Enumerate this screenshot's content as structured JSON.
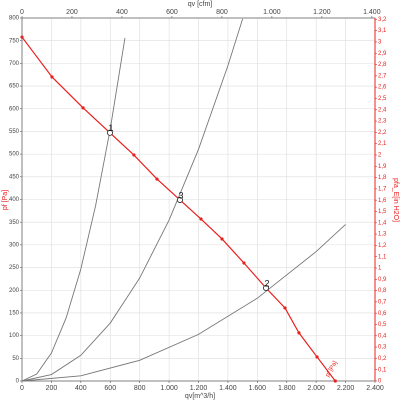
{
  "chart_data": {
    "type": "line",
    "x_label": "qv[m^3/h]",
    "y_label": "pf [Pa]",
    "x2_label": "qv [cfm]",
    "y2_label": "pfa_E[in H2O]",
    "curve_label": "pf [Pa]",
    "xlim": [
      0,
      2400
    ],
    "xticks": [
      0,
      200,
      400,
      600,
      800,
      {
        "value": 1000,
        "label": "1.000"
      },
      {
        "value": 1200,
        "label": "1.200"
      },
      {
        "value": 1400,
        "label": "1.400"
      },
      {
        "value": 1600,
        "label": "1.600"
      },
      {
        "value": 1800,
        "label": "1.800"
      },
      {
        "value": 2000,
        "label": "2.000"
      },
      {
        "value": 2200,
        "label": "2.200"
      },
      {
        "value": 2400,
        "label": "2.400"
      }
    ],
    "x2lim": [
      0,
      1412.6
    ],
    "x2ticks": [
      0,
      200,
      400,
      600,
      800,
      {
        "value": 1000,
        "label": "1.000"
      },
      {
        "value": 1200,
        "label": "1.200"
      },
      {
        "value": 1400,
        "label": "1.400"
      }
    ],
    "ylim": [
      0,
      800
    ],
    "yticks": [
      0,
      50,
      100,
      150,
      200,
      250,
      300,
      350,
      400,
      450,
      500,
      550,
      600,
      650,
      700,
      750,
      800
    ],
    "y2lim": [
      0,
      3.212
    ],
    "y2ticks": [
      0,
      {
        "value": 0.1,
        "label": "0,1"
      },
      {
        "value": 0.2,
        "label": "0,2"
      },
      {
        "value": 0.3,
        "label": "0,3"
      },
      {
        "value": 0.4,
        "label": "0,4"
      },
      {
        "value": 0.5,
        "label": "0,5"
      },
      {
        "value": 0.6,
        "label": "0,6"
      },
      {
        "value": 0.7,
        "label": "0,7"
      },
      {
        "value": 0.8,
        "label": "0,8"
      },
      {
        "value": 0.9,
        "label": "0,9"
      },
      1,
      {
        "value": 1.1,
        "label": "1,1"
      },
      {
        "value": 1.2,
        "label": "1,2"
      },
      {
        "value": 1.3,
        "label": "1,3"
      },
      {
        "value": 1.4,
        "label": "1,4"
      },
      {
        "value": 1.5,
        "label": "1,5"
      },
      {
        "value": 1.6,
        "label": "1,6"
      },
      {
        "value": 1.7,
        "label": "1,7"
      },
      {
        "value": 1.8,
        "label": "1,8"
      },
      {
        "value": 1.9,
        "label": "1,9"
      },
      2,
      {
        "value": 2.1,
        "label": "2,1"
      },
      {
        "value": 2.2,
        "label": "2,2"
      },
      {
        "value": 2.3,
        "label": "2,3"
      },
      {
        "value": 2.4,
        "label": "2,4"
      },
      {
        "value": 2.5,
        "label": "2,5"
      },
      {
        "value": 2.6,
        "label": "2,6"
      },
      {
        "value": 2.7,
        "label": "2,7"
      },
      {
        "value": 2.8,
        "label": "2,8"
      },
      {
        "value": 2.9,
        "label": "2,9"
      },
      3,
      {
        "value": 3.1,
        "label": "3,1"
      },
      {
        "value": 3.2,
        "label": "3,2"
      }
    ],
    "grid": true,
    "series": [
      {
        "color": "#e8201e",
        "markers": true,
        "x": [
          0,
          204,
          415,
          598,
          761,
          918,
          1074,
          1217,
          1360,
          1509,
          1659,
          1788,
          1883,
          2006,
          2130
        ],
        "values": [
          758,
          670,
          602,
          547,
          498,
          445,
          399,
          357,
          313,
          260,
          205,
          161,
          106,
          53,
          0
        ]
      },
      {
        "color": "#777777",
        "markers": false,
        "x": [
          0,
          100,
          200,
          300,
          400,
          500,
          600,
          700
        ],
        "values": [
          0,
          15.4,
          61.7,
          138.9,
          246.9,
          385.8,
          555.5,
          756
        ]
      },
      {
        "color": "#777777",
        "markers": false,
        "x": [
          0,
          200,
          400,
          600,
          800,
          1000,
          1200,
          1400,
          1500
        ],
        "values": [
          0,
          14.2,
          56.7,
          127.7,
          226.9,
          354.6,
          510.6,
          695,
          798
        ]
      },
      {
        "color": "#777777",
        "markers": false,
        "x": [
          0,
          400,
          800,
          1200,
          1600,
          2000,
          2200
        ],
        "values": [
          0,
          11.4,
          45.6,
          102.7,
          182.5,
          285.2,
          345
        ]
      }
    ],
    "annotations": [
      {
        "text": "1",
        "x": 598,
        "y": 547
      },
      {
        "text": "3",
        "x": 1074,
        "y": 399
      },
      {
        "text": "2",
        "x": 1659,
        "y": 205
      }
    ]
  }
}
